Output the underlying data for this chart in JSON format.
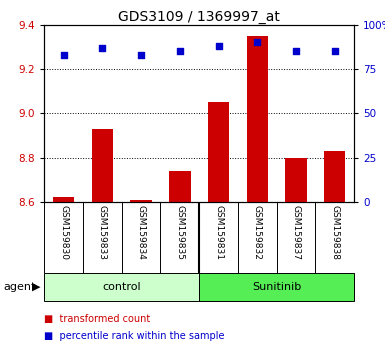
{
  "title": "GDS3109 / 1369997_at",
  "samples": [
    "GSM159830",
    "GSM159833",
    "GSM159834",
    "GSM159835",
    "GSM159831",
    "GSM159832",
    "GSM159837",
    "GSM159838"
  ],
  "bar_values": [
    8.62,
    8.93,
    8.61,
    8.74,
    9.05,
    9.35,
    8.8,
    8.83
  ],
  "bar_base": 8.6,
  "percentile_display": [
    83,
    87,
    83,
    85,
    88,
    90,
    85,
    85
  ],
  "ylim_left": [
    8.6,
    9.4
  ],
  "ylim_right": [
    0,
    100
  ],
  "yticks_left": [
    8.6,
    8.8,
    9.0,
    9.2,
    9.4
  ],
  "yticks_right": [
    0,
    25,
    50,
    75,
    100
  ],
  "bar_color": "#cc0000",
  "dot_color": "#0000cc",
  "group_labels": [
    "control",
    "Sunitinib"
  ],
  "group_colors": [
    "#ccffcc",
    "#55ee55"
  ],
  "control_count": 4,
  "agent_label": "agent",
  "legend_items": [
    {
      "color": "#cc0000",
      "label": "transformed count"
    },
    {
      "color": "#0000cc",
      "label": "percentile rank within the sample"
    }
  ],
  "tick_label_color_left": "#cc0000",
  "tick_label_color_right": "#0000cc",
  "sample_box_color": "#cccccc",
  "plot_bg": "#ffffff",
  "bar_width": 0.55
}
